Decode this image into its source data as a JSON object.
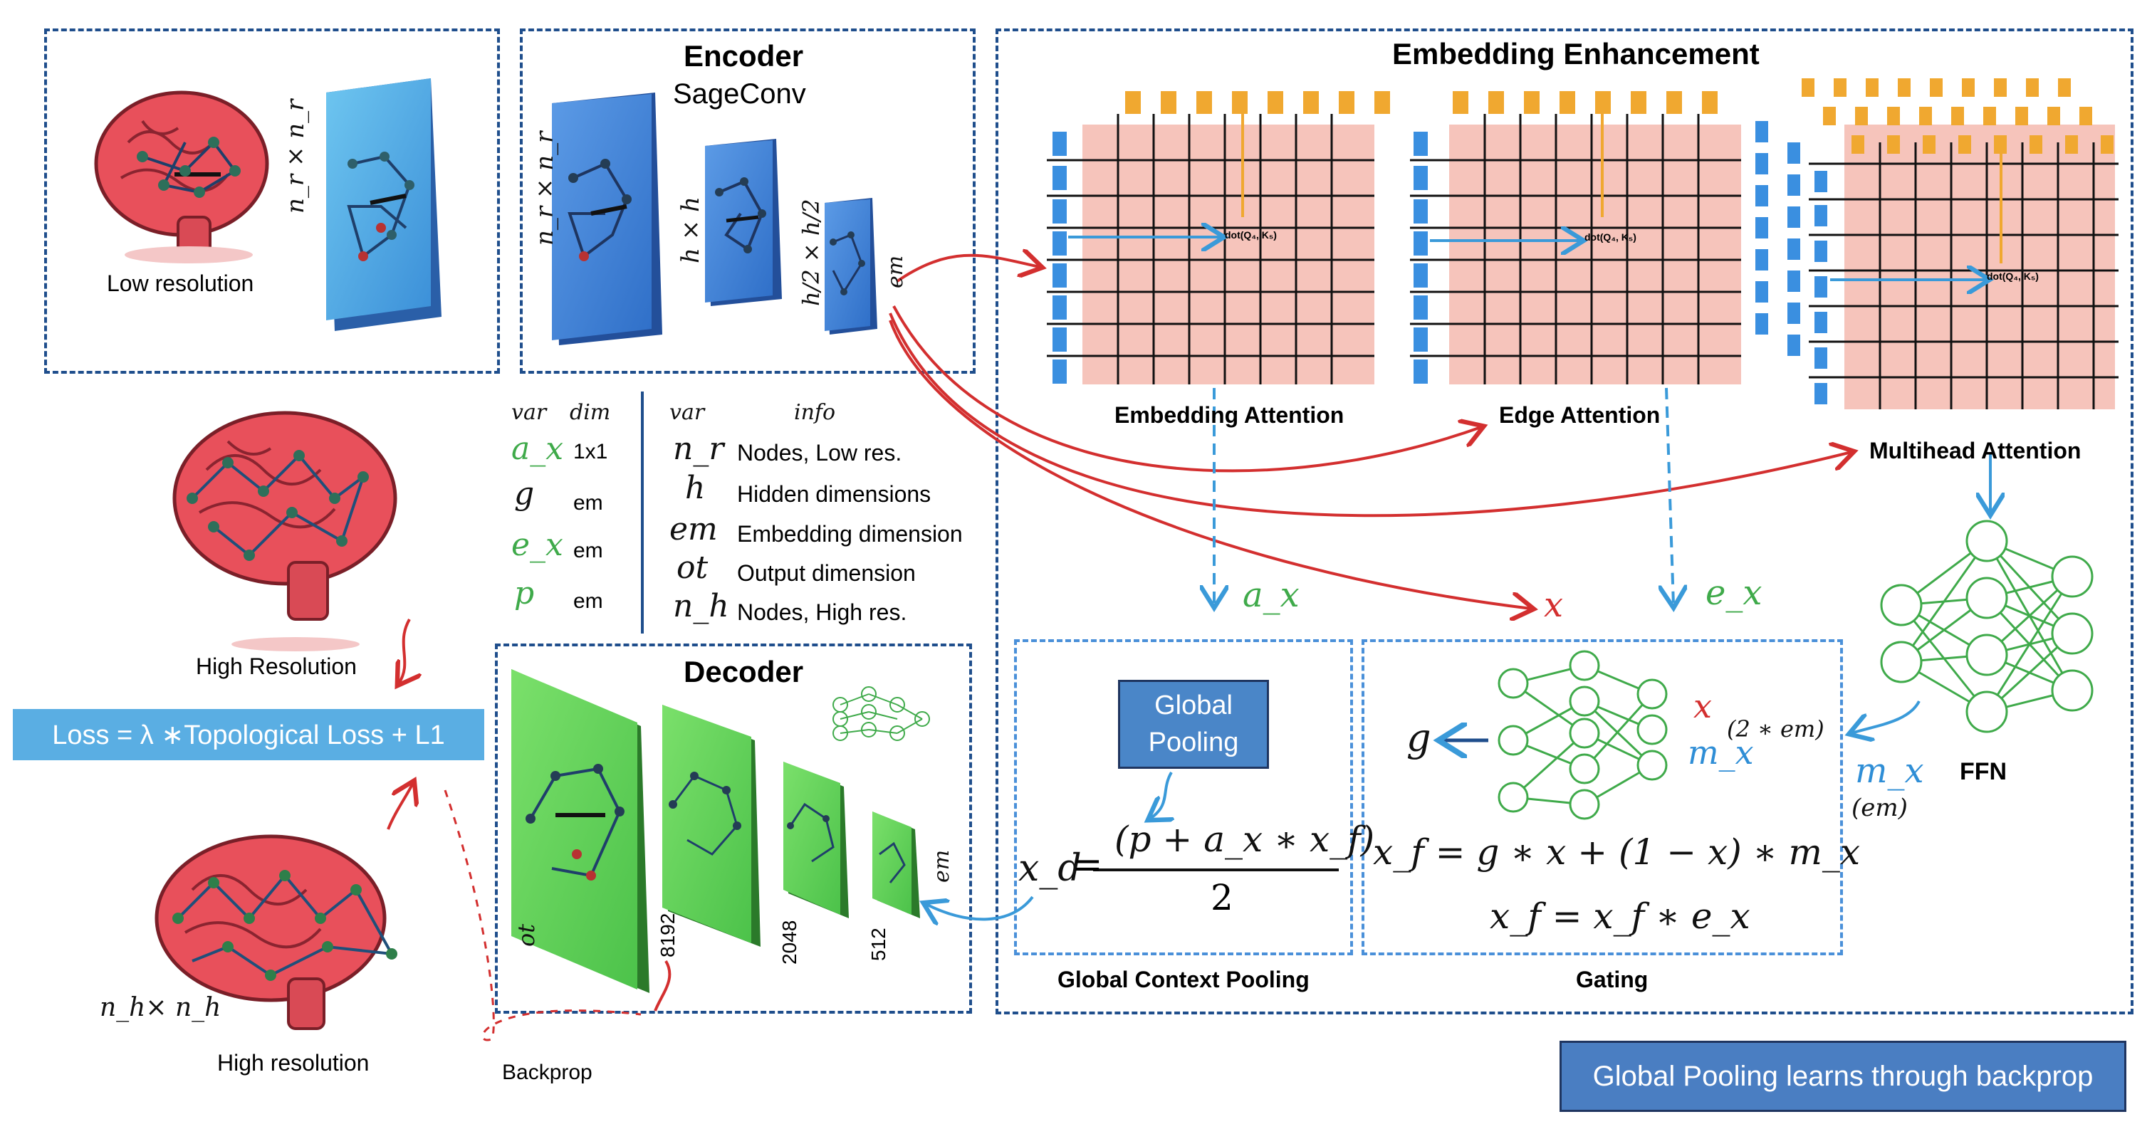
{
  "low_res_panel": {
    "label": "Low resolution",
    "matrix_label": "n_r × n_r"
  },
  "high_res_top": {
    "label": "High Resolution"
  },
  "high_res_bottom": {
    "label": "High resolution",
    "matrix_label": "n_h× n_h"
  },
  "loss": {
    "text": "Loss = λ ∗Topological Loss + L1"
  },
  "backprop_label": "Backprop",
  "encoder": {
    "title": "Encoder",
    "subtitle": "SageConv",
    "layer_labels": [
      "n_r × n_r",
      "h × h",
      "h/2 × h/2",
      "em"
    ]
  },
  "var_table": {
    "left_headers": [
      "var",
      "dim"
    ],
    "left_rows": [
      {
        "var": "a_x",
        "dim": "1x1"
      },
      {
        "var": "g",
        "dim": "em"
      },
      {
        "var": "e_x",
        "dim": "em"
      },
      {
        "var": "p",
        "dim": "em"
      }
    ],
    "right_headers": [
      "var",
      "info"
    ],
    "right_rows": [
      {
        "var": "n_r",
        "info": "Nodes, Low res."
      },
      {
        "var": "h",
        "info": "Hidden dimensions"
      },
      {
        "var": "em",
        "info": "Embedding dimension"
      },
      {
        "var": "ot",
        "info": "Output dimension"
      },
      {
        "var": "n_h",
        "info": "Nodes, High res."
      }
    ]
  },
  "decoder": {
    "title": "Decoder",
    "layer_labels": [
      "ot",
      "8192",
      "2048",
      "512",
      "em"
    ]
  },
  "embedding_enhancement": {
    "title": "Embedding Enhancement",
    "attention_labels": [
      "Embedding Attention",
      "Edge Attention",
      "Multihead Attention"
    ],
    "dot_label": "dot(Q₄, K₅)",
    "ffn_label": "FFN",
    "ax_label": "a_x",
    "x_label": "x",
    "ex_label": "e_x",
    "mx_label": "m_x",
    "mx_dim": "(em)"
  },
  "global_context": {
    "caption": "Global Context Pooling",
    "pool_box": "Global\nPooling",
    "formula_lhs": "x_d",
    "numerator": "(p + a_x ∗ x_f)",
    "denominator": "2"
  },
  "gating": {
    "caption": "Gating",
    "g_label": "g",
    "x_in": "x",
    "mx_in": "m_x",
    "in_dim": "(2 ∗ em)",
    "formula1": "x_f = g ∗ x + (1 − x) ∗ m_x",
    "formula2": "x_f = x_f ∗ e_x"
  },
  "footer_box": "Global Pooling learns through backprop",
  "colors": {
    "dash_dark": "#1f4e8c",
    "dash_light": "#4a90d9",
    "red_arrow": "#d32f2f",
    "blue_arrow": "#3a9ad9",
    "green": "#3faa4a",
    "attention_bg": "#f6c4bb",
    "query_blue": "#3a8fe0",
    "key_orange": "#f0a830",
    "loss_bg": "#5aaee3",
    "pool_box_bg": "#4a86c8",
    "footer_bg": "#4a7ec2"
  }
}
